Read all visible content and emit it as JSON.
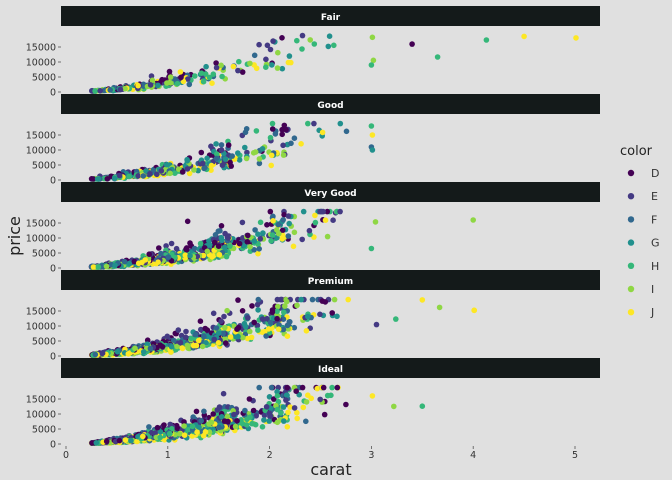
{
  "chart_data": {
    "type": "scatter",
    "xlabel": "carat",
    "ylabel": "price",
    "x_ticks": [
      0,
      1,
      2,
      3,
      4,
      5
    ],
    "y_ticks": [
      0,
      5000,
      10000,
      15000
    ],
    "xlim": [
      -0.05,
      5.2
    ],
    "ylim": [
      -1000,
      19500
    ],
    "legend": {
      "title": "color",
      "placement": "right",
      "entries": [
        {
          "label": "D",
          "color": "#440154"
        },
        {
          "label": "E",
          "color": "#443a83"
        },
        {
          "label": "F",
          "color": "#31688e"
        },
        {
          "label": "G",
          "color": "#21908d"
        },
        {
          "label": "H",
          "color": "#35b779"
        },
        {
          "label": "I",
          "color": "#8fd744"
        },
        {
          "label": "J",
          "color": "#fde725"
        }
      ]
    },
    "facets": [
      {
        "label": "Fair",
        "outliers": [
          {
            "x": 3.4,
            "y": 15964,
            "color": "D"
          },
          {
            "x": 3.65,
            "y": 11668,
            "color": "H"
          },
          {
            "x": 4.13,
            "y": 17329,
            "color": "H"
          },
          {
            "x": 4.5,
            "y": 18531,
            "color": "J"
          },
          {
            "x": 5.01,
            "y": 18018,
            "color": "J"
          },
          {
            "x": 3.01,
            "y": 18242,
            "color": "I"
          },
          {
            "x": 3.02,
            "y": 10577,
            "color": "I"
          },
          {
            "x": 3.0,
            "y": 9000,
            "color": "H"
          }
        ]
      },
      {
        "label": "Good",
        "outliers": [
          {
            "x": 3.0,
            "y": 18000,
            "color": "H"
          },
          {
            "x": 3.01,
            "y": 15000,
            "color": "J"
          },
          {
            "x": 3.0,
            "y": 11000,
            "color": "F"
          },
          {
            "x": 3.01,
            "y": 10000,
            "color": "G"
          }
        ]
      },
      {
        "label": "Very Good",
        "outliers": [
          {
            "x": 3.04,
            "y": 15354,
            "color": "I"
          },
          {
            "x": 4.0,
            "y": 15984,
            "color": "I"
          },
          {
            "x": 3.0,
            "y": 6512,
            "color": "H"
          }
        ]
      },
      {
        "label": "Premium",
        "outliers": [
          {
            "x": 3.5,
            "y": 18701,
            "color": "J"
          },
          {
            "x": 3.67,
            "y": 16193,
            "color": "I"
          },
          {
            "x": 4.01,
            "y": 15223,
            "color": "J"
          },
          {
            "x": 3.24,
            "y": 12300,
            "color": "H"
          },
          {
            "x": 3.05,
            "y": 10453,
            "color": "E"
          },
          {
            "x": 4.01,
            "y": 15223,
            "color": "J"
          }
        ]
      },
      {
        "label": "Ideal",
        "outliers": [
          {
            "x": 3.01,
            "y": 16037,
            "color": "J"
          },
          {
            "x": 3.22,
            "y": 12545,
            "color": "I"
          },
          {
            "x": 3.5,
            "y": 12587,
            "color": "H"
          },
          {
            "x": 2.75,
            "y": 13156,
            "color": "D"
          }
        ]
      }
    ]
  }
}
